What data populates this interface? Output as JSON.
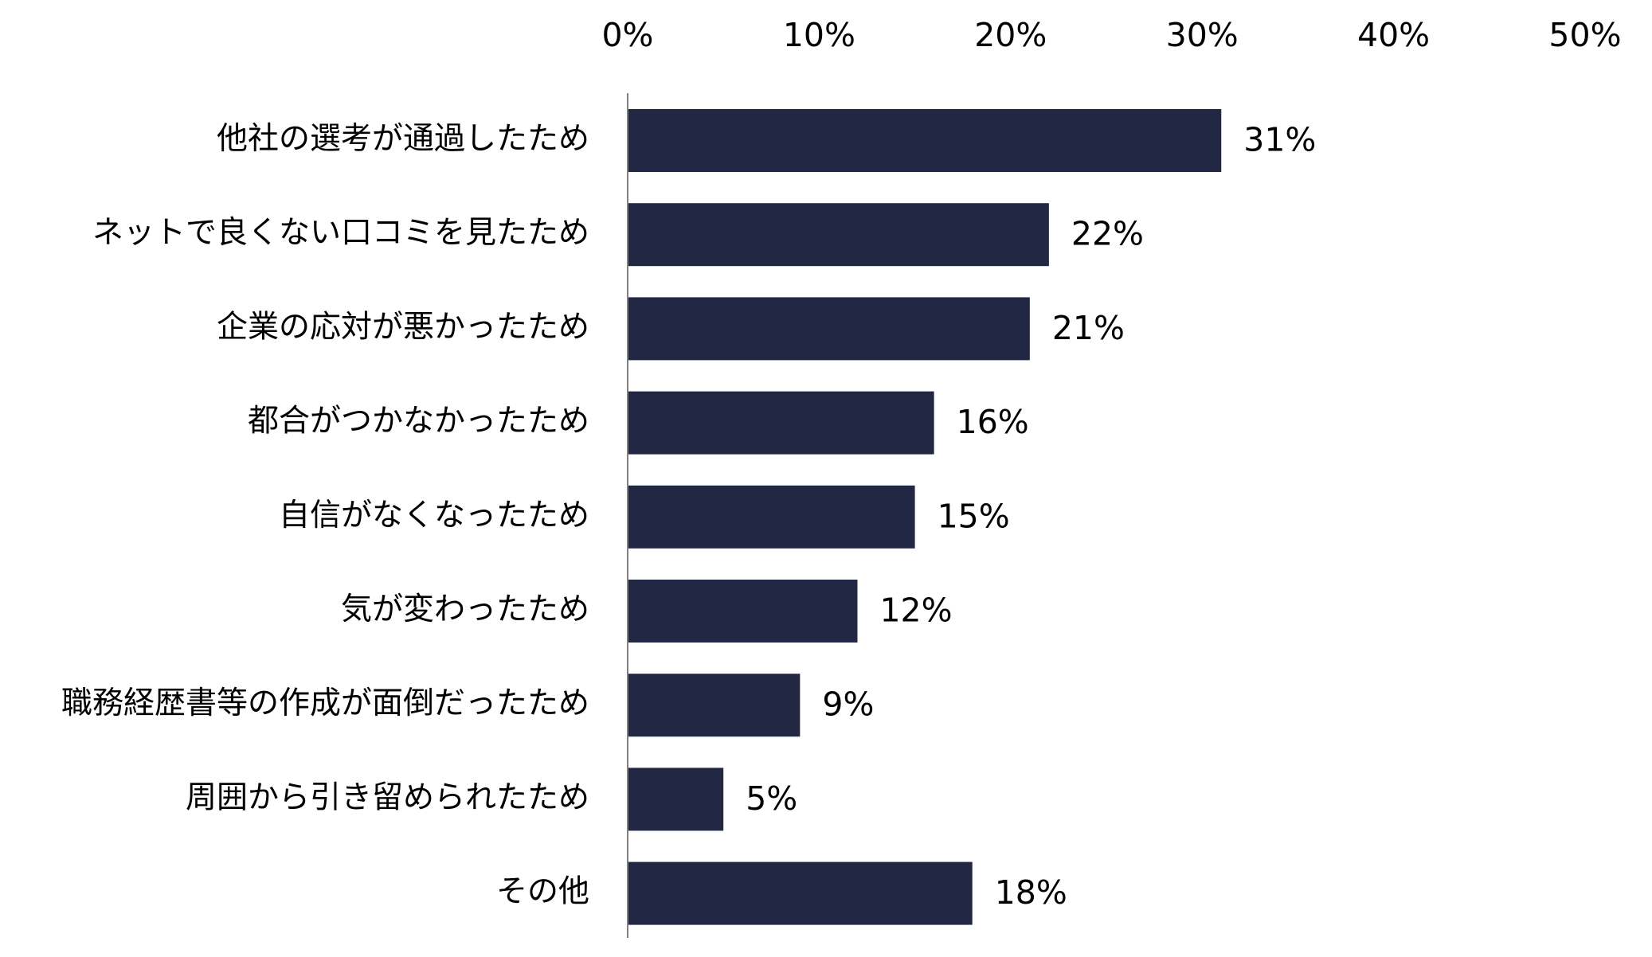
{
  "chart_data": {
    "type": "bar",
    "orientation": "horizontal",
    "categories": [
      "他社の選考が通過したため",
      "ネットで良くない口コミを見たため",
      "企業の応対が悪かったため",
      "都合がつかなかったため",
      "自信がなくなったため",
      "気が変わったため",
      "職務経歴書等の作成が面倒だったため",
      "周囲から引き留められたため",
      "その他"
    ],
    "values": [
      31,
      22,
      21,
      16,
      15,
      12,
      9,
      5,
      18
    ],
    "value_labels": [
      "31%",
      "22%",
      "21%",
      "16%",
      "15%",
      "12%",
      "9%",
      "5%",
      "18%"
    ],
    "xlim": [
      0,
      50
    ],
    "x_ticks": [
      0,
      10,
      20,
      30,
      40,
      50
    ],
    "x_tick_labels": [
      "0%",
      "10%",
      "20%",
      "30%",
      "40%",
      "50%"
    ],
    "x_axis_position": "top",
    "grid": false,
    "legend": "none",
    "title": "",
    "xlabel": "",
    "ylabel": "",
    "colors": {
      "bar": "#222743",
      "axis": "#808080",
      "text": "#000000"
    }
  }
}
